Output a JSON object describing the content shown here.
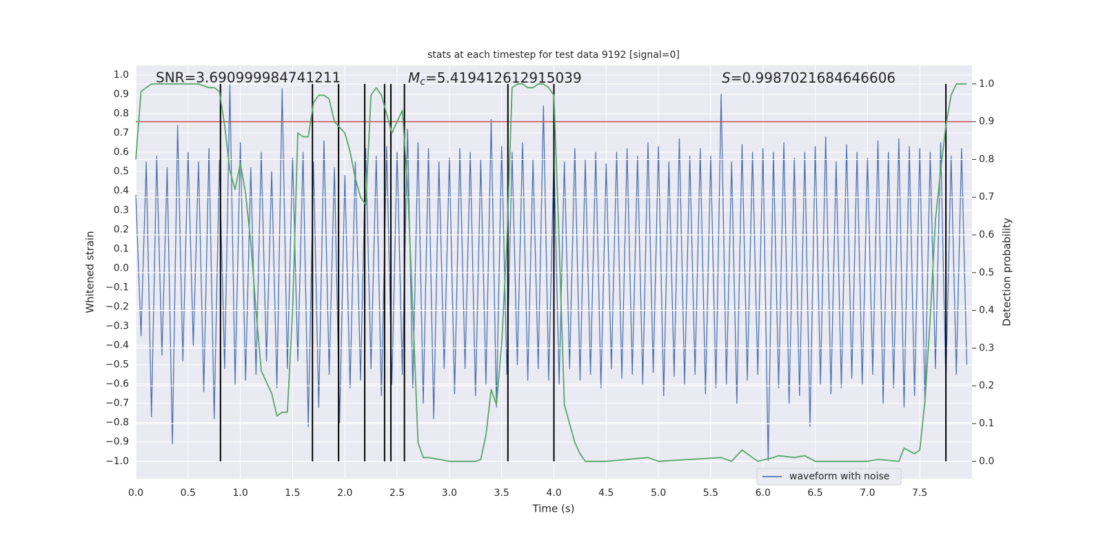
{
  "chart_data": {
    "type": "line",
    "title": "stats at each timestep for test data 9192 [signal=0]",
    "xlabel": "Time (s)",
    "ylabel": "Whitened strain",
    "y2label": "Detection probability",
    "annotations": [
      {
        "text": "SNR=3.690999984741211"
      },
      {
        "symbol": "M",
        "subscript": "c",
        "text": "=5.419412612915039"
      },
      {
        "symbol": "S",
        "text": "=0.9987021684646606"
      }
    ],
    "xlim": [
      0,
      8.0
    ],
    "ylim": [
      -1.09,
      1.05
    ],
    "y2lim": [
      -0.046,
      1.049
    ],
    "xticks": [
      {
        "value": 0,
        "label": "0.0"
      },
      0.5,
      {
        "value": 1,
        "label": "1.0"
      },
      1.5,
      {
        "value": 2,
        "label": "2.0"
      },
      2.5,
      {
        "value": 3,
        "label": "3.0"
      },
      3.5,
      {
        "value": 4,
        "label": "4.0"
      },
      4.5,
      {
        "value": 5,
        "label": "5.0"
      },
      5.5,
      {
        "value": 6,
        "label": "6.0"
      },
      6.5,
      {
        "value": 7,
        "label": "7.0"
      },
      7.5
    ],
    "yticks": [
      {
        "value": -1,
        "label": "−1.0"
      },
      {
        "value": -0.9,
        "label": "−0.9"
      },
      {
        "value": -0.8,
        "label": "−0.8"
      },
      {
        "value": -0.7,
        "label": "−0.7"
      },
      {
        "value": -0.6,
        "label": "−0.6"
      },
      {
        "value": -0.5,
        "label": "−0.5"
      },
      {
        "value": -0.4,
        "label": "−0.4"
      },
      {
        "value": -0.3,
        "label": "−0.3"
      },
      {
        "value": -0.2,
        "label": "−0.2"
      },
      {
        "value": -0.1,
        "label": "−0.1"
      },
      {
        "value": 0,
        "label": "0.0"
      },
      0.1,
      0.2,
      0.3,
      0.4,
      0.5,
      0.6,
      0.7,
      0.8,
      0.9,
      {
        "value": 1,
        "label": "1.0"
      }
    ],
    "y2ticks": [
      {
        "value": 0,
        "label": "0.0"
      },
      0.1,
      0.2,
      0.3,
      0.4,
      0.5,
      0.6,
      0.7,
      0.8,
      0.9,
      {
        "value": 1,
        "label": "1.0"
      }
    ],
    "grid": true,
    "legend": {
      "loc": "lower right"
    },
    "series": [
      {
        "name": "waveform with noise",
        "color": "#4c72b0",
        "x": [
          0,
          0.05,
          0.1,
          0.15,
          0.2,
          0.25,
          0.3,
          0.35,
          0.4,
          0.45,
          0.5,
          0.55,
          0.6,
          0.65,
          0.7,
          0.75,
          0.8,
          0.85,
          0.9,
          0.95,
          1,
          1.05,
          1.1,
          1.15,
          1.2,
          1.25,
          1.3,
          1.35,
          1.4,
          1.45,
          1.5,
          1.55,
          1.6,
          1.65,
          1.7,
          1.75,
          1.8,
          1.85,
          1.9,
          1.95,
          2,
          2.05,
          2.1,
          2.15,
          2.2,
          2.25,
          2.3,
          2.35,
          2.4,
          2.45,
          2.5,
          2.55,
          2.6,
          2.65,
          2.7,
          2.75,
          2.8,
          2.85,
          2.9,
          2.95,
          3,
          3.05,
          3.1,
          3.15,
          3.2,
          3.25,
          3.3,
          3.35,
          3.4,
          3.45,
          3.5,
          3.55,
          3.6,
          3.65,
          3.7,
          3.75,
          3.8,
          3.85,
          3.9,
          3.95,
          4,
          4.05,
          4.1,
          4.15,
          4.2,
          4.25,
          4.3,
          4.35,
          4.4,
          4.45,
          4.5,
          4.55,
          4.6,
          4.65,
          4.7,
          4.75,
          4.8,
          4.85,
          4.9,
          4.95,
          5,
          5.05,
          5.1,
          5.15,
          5.2,
          5.25,
          5.3,
          5.35,
          5.4,
          5.45,
          5.5,
          5.55,
          5.6,
          5.65,
          5.7,
          5.75,
          5.8,
          5.85,
          5.9,
          5.95,
          6,
          6.05,
          6.1,
          6.15,
          6.2,
          6.25,
          6.3,
          6.35,
          6.4,
          6.45,
          6.5,
          6.55,
          6.6,
          6.65,
          6.7,
          6.75,
          6.8,
          6.85,
          6.9,
          6.95,
          7,
          7.05,
          7.1,
          7.15,
          7.2,
          7.25,
          7.3,
          7.35,
          7.4,
          7.45,
          7.5,
          7.55,
          7.6,
          7.65,
          7.7,
          7.75,
          7.8,
          7.85,
          7.9,
          7.95
        ],
        "values": [
          0.38,
          -0.35,
          0.55,
          -0.77,
          0.58,
          -0.45,
          0.52,
          -0.91,
          0.74,
          -0.48,
          0.6,
          -0.4,
          0.55,
          -0.64,
          0.62,
          -0.78,
          0.56,
          -0.52,
          0.95,
          -0.6,
          0.65,
          -0.58,
          0.52,
          -0.55,
          0.6,
          -0.48,
          0.5,
          -0.62,
          0.93,
          -0.52,
          0.57,
          -0.48,
          0.6,
          -0.82,
          0.55,
          -0.72,
          0.66,
          -0.55,
          0.52,
          -0.8,
          0.48,
          -0.62,
          0.55,
          -0.58,
          0.62,
          -0.52,
          0.58,
          -0.66,
          0.63,
          -0.6,
          0.6,
          -0.55,
          0.72,
          -0.62,
          0.65,
          -0.7,
          0.62,
          -0.78,
          0.55,
          -0.52,
          0.57,
          -0.65,
          0.62,
          -0.52,
          0.6,
          -0.66,
          0.56,
          -0.6,
          0.77,
          -0.72,
          0.63,
          -0.55,
          0.6,
          -0.5,
          0.65,
          -0.58,
          0.56,
          -0.52,
          0.84,
          -0.58,
          0.58,
          -0.6,
          0.55,
          -0.52,
          0.62,
          -0.58,
          0.56,
          -0.55,
          0.6,
          -0.62,
          0.54,
          -0.52,
          0.6,
          -0.57,
          0.62,
          -0.55,
          0.58,
          -0.6,
          0.65,
          -0.54,
          0.63,
          -0.66,
          0.55,
          -0.56,
          0.67,
          -0.6,
          0.58,
          -0.55,
          0.62,
          -0.65,
          0.58,
          -0.62,
          0.9,
          -0.6,
          0.55,
          -0.7,
          0.64,
          -0.58,
          0.6,
          -0.55,
          0.62,
          -1.0,
          0.6,
          -0.62,
          0.65,
          -0.7,
          0.57,
          -0.66,
          0.6,
          -0.82,
          0.63,
          -0.6,
          0.68,
          -0.65,
          0.55,
          -0.62,
          0.64,
          -0.57,
          0.6,
          -0.6,
          0.57,
          -0.55,
          0.66,
          -0.7,
          0.6,
          -0.62,
          0.67,
          -0.72,
          0.63,
          -0.66,
          0.62,
          -0.7,
          0.6,
          -0.52,
          0.65,
          -0.6,
          0.58,
          -0.55,
          0.62,
          -0.5
        ]
      },
      {
        "color": "#55a868",
        "axis": "y2",
        "x": [
          0,
          0.05,
          0.1,
          0.15,
          0.2,
          0.3,
          0.4,
          0.5,
          0.6,
          0.7,
          0.75,
          0.8,
          0.85,
          0.9,
          0.95,
          1,
          1.05,
          1.1,
          1.15,
          1.2,
          1.3,
          1.35,
          1.4,
          1.45,
          1.5,
          1.55,
          1.6,
          1.65,
          1.7,
          1.75,
          1.8,
          1.85,
          1.9,
          2,
          2.05,
          2.1,
          2.15,
          2.2,
          2.25,
          2.3,
          2.35,
          2.4,
          2.45,
          2.5,
          2.55,
          2.6,
          2.65,
          2.7,
          2.75,
          2.8,
          2.9,
          3,
          3.1,
          3.2,
          3.25,
          3.3,
          3.35,
          3.4,
          3.45,
          3.5,
          3.55,
          3.6,
          3.65,
          3.7,
          3.75,
          3.8,
          3.85,
          3.9,
          3.95,
          4,
          4.05,
          4.1,
          4.15,
          4.2,
          4.25,
          4.3,
          4.5,
          4.9,
          5,
          5.6,
          5.7,
          5.8,
          5.9,
          5.95,
          6.1,
          6.15,
          6.3,
          6.4,
          6.5,
          7,
          7.1,
          7.3,
          7.35,
          7.45,
          7.5,
          7.55,
          7.6,
          7.65,
          7.7,
          7.75,
          7.8,
          7.85,
          7.9,
          7.95
        ],
        "values": [
          0.8,
          0.98,
          0.99,
          1.0,
          1.0,
          1.0,
          1.0,
          1.0,
          1.0,
          0.99,
          0.99,
          0.98,
          0.89,
          0.77,
          0.72,
          0.79,
          0.71,
          0.58,
          0.4,
          0.24,
          0.18,
          0.12,
          0.13,
          0.13,
          0.4,
          0.87,
          0.86,
          0.86,
          0.95,
          0.97,
          0.97,
          0.96,
          0.9,
          0.87,
          0.82,
          0.75,
          0.7,
          0.68,
          0.97,
          0.99,
          0.97,
          0.92,
          0.87,
          0.9,
          0.93,
          0.73,
          0.4,
          0.05,
          0.01,
          0.01,
          0.005,
          0.0,
          0.0,
          0.0,
          0.0,
          0.005,
          0.07,
          0.19,
          0.15,
          0.31,
          0.58,
          0.99,
          1.0,
          1.0,
          0.99,
          0.99,
          1.0,
          1.0,
          0.99,
          0.97,
          0.58,
          0.15,
          0.1,
          0.05,
          0.02,
          0.0,
          0.0,
          0.01,
          0.0,
          0.01,
          0.0,
          0.03,
          0.01,
          0.0,
          0.01,
          0.015,
          0.01,
          0.015,
          0.0,
          0.0,
          0.005,
          0.0,
          0.035,
          0.02,
          0.03,
          0.16,
          0.38,
          0.64,
          0.77,
          0.89,
          0.97,
          1.0,
          1.0,
          1.0
        ]
      }
    ],
    "threshold": {
      "value": 0.9,
      "axis": "y2",
      "color": "#c44e52"
    },
    "vlines": {
      "x": [
        0.81,
        1.69,
        1.94,
        2.19,
        2.38,
        2.44,
        2.57,
        3.56,
        4.0,
        7.75
      ],
      "ymin": 0,
      "ymax": 1,
      "axis": "y2",
      "color": "#000000"
    }
  }
}
